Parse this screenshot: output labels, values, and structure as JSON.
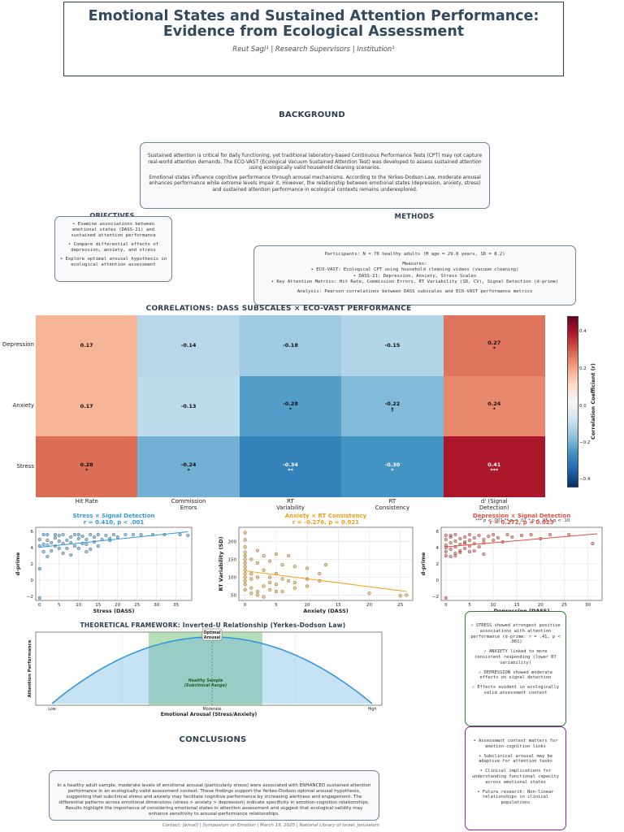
{
  "header": {
    "title_line1": "Emotional States and Sustained Attention Performance:",
    "title_line2": "Evidence from Ecological Assessment",
    "authors": "Reut Sagi¹ | Research Supervisors | Institution¹"
  },
  "background": {
    "heading": "BACKGROUND",
    "p1": "Sustained attention is critical for daily functioning, yet traditional laboratory-based Continuous Performance Tests (CPT) may not capture real-world attention demands. The ECO-VAST (Ecological Vacuum Sustained Attention Test) was developed to assess sustained attention using ecologically valid household cleaning scenarios.",
    "p2": "Emotional states influence cognitive performance through arousal mechanisms. According to the Yerkes-Dodson Law, moderate arousal enhances performance while extreme levels impair it. However, the relationship between emotional states (depression, anxiety, stress) and sustained attention performance in ecological contexts remains underexplored."
  },
  "objectives": {
    "heading": "OBJECTIVES",
    "items": [
      "• Examine associations between emotional states (DASS-21) and sustained attention performance",
      "• Compare differential effects of depression, anxiety, and stress",
      "• Explore optimal arousal hypothesis in ecological attention assessment"
    ]
  },
  "methods": {
    "heading": "METHODS",
    "participants": "Participants: N = 70 healthy adults (M age = 29.8 years, SD = 8.2)",
    "measures_h": "Measures:",
    "m1": "• ECO-VAST: Ecological CPT using household cleaning videos (vacuum cleaning)",
    "m2": "• DASS-21: Depression, Anxiety, Stress Scales",
    "m3": "• Key Attention Metrics: Hit Rate, Commission Errors, RT Variability (SD, CV), Signal Detection (d-prime)",
    "analysis": "Analysis: Pearson correlations between DASS subscales and ECO-VAST performance metrics"
  },
  "heatmap": {
    "title": "CORRELATIONS: DASS SUBSCALES × ECO-VAST PERFORMANCE",
    "rows": [
      "Depression",
      "Anxiety",
      "Stress"
    ],
    "cols": [
      "Hit Rate",
      "Commission\nErrors",
      "RT\nVariability",
      "RT\nConsistency",
      "d' (Signal\nDetection)"
    ],
    "cells": [
      [
        {
          "v": "0.17",
          "s": ""
        },
        {
          "v": "-0.14",
          "s": ""
        },
        {
          "v": "-0.18",
          "s": ""
        },
        {
          "v": "-0.15",
          "s": ""
        },
        {
          "v": "0.27",
          "s": "*"
        }
      ],
      [
        {
          "v": "0.17",
          "s": ""
        },
        {
          "v": "-0.13",
          "s": ""
        },
        {
          "v": "-0.28",
          "s": "*"
        },
        {
          "v": "-0.22",
          "s": "†"
        },
        {
          "v": "0.24",
          "s": "*"
        }
      ],
      [
        {
          "v": "0.28",
          "s": "*"
        },
        {
          "v": "-0.24",
          "s": "*"
        },
        {
          "v": "-0.34",
          "s": "**"
        },
        {
          "v": "-0.30",
          "s": "*"
        },
        {
          "v": "0.41",
          "s": "***"
        }
      ]
    ],
    "colorbar_label": "Correlation Coefficient (r)",
    "colorbar_ticks": [
      "0.4",
      "0.2",
      "0.0",
      "−0.2",
      "−0.4"
    ],
    "legend_note": "*** p < .001  ** p < .01  * p < .05  † p < .10"
  },
  "scatter1": {
    "title": "Stress × Signal Detection",
    "stat": "r = 0.410, p < .001",
    "xlabel": "Stress (DASS)",
    "ylabel": "d-prime",
    "color": "#3498db",
    "xticks": [
      "0",
      "5",
      "10",
      "15",
      "20",
      "25",
      "30",
      "35"
    ],
    "yticks": [
      "6",
      "4",
      "2",
      "0",
      "−2"
    ]
  },
  "scatter2": {
    "title": "Anxiety × RT Consistency",
    "stat": "r = -0.276, p = 0.021",
    "xlabel": "Anxiety (DASS)",
    "ylabel": "RT Variability (SD)",
    "color": "#f39c12",
    "xticks": [
      "0",
      "5",
      "10",
      "15",
      "20",
      "25"
    ],
    "yticks": [
      "200",
      "150",
      "100",
      "50"
    ]
  },
  "scatter3": {
    "title": "Depression × Signal Detection",
    "stat": "r = 0.272, p = 0.023",
    "xlabel": "Depression (DASS)",
    "ylabel": "d-prime",
    "color": "#e74c3c",
    "xticks": [
      "0",
      "5",
      "10",
      "15",
      "20",
      "25",
      "30"
    ],
    "yticks": [
      "6",
      "4",
      "2",
      "0",
      "−2"
    ]
  },
  "framework": {
    "title": "THEORETICAL FRAMEWORK: Inverted-U Relationship (Yerkes-Dodson Law)",
    "ylabel": "Attention Performance",
    "xlabel": "Emotional Arousal (Stress/Anxiety)",
    "low": "Low",
    "moderate": "Moderate",
    "high": "High",
    "optimal": "Optimal\nArousal",
    "healthy": "Healthy Sample\n(Subclinical Range)"
  },
  "findings": {
    "items": [
      "✓ STRESS showed strongest positive associations with attention performance (d-prime: r = .41, p < .001)",
      "✓ ANXIETY linked to more consistent responding (lower RT variability)",
      "✓ DEPRESSION showed moderate effects on signal detection",
      "✓ Effects evident in ecologically valid assessment context"
    ]
  },
  "implications": {
    "items": [
      "• Assessment context matters for emotion-cognition links",
      "• Subclinical arousal may be adaptive for attention tasks",
      "• Clinical implications for understanding functional capacity across emotional states",
      "• Future research: Non-linear relationships in clinical populations"
    ]
  },
  "conclusions": {
    "heading": "CONCLUSIONS",
    "text": "In a healthy adult sample, moderate levels of emotional arousal (particularly stress) were associated with ENHANCED sustained attention performance in an ecologically valid assessment context. These findings support the Yerkes-Dodson optimal arousal hypothesis, suggesting that subclinical stress and anxiety may facilitate cognitive performance by increasing alertness and engagement. The differential patterns across emotional dimensions (stress > anxiety > depression) indicate specificity in emotion-cognition relationships. Results highlight the importance of considering emotional states in attention assessment and suggest that ecological validity may enhance sensitivity to arousal-performance relationships."
  },
  "footer": "Contact: [email] | Symposium on Emotion | March 19, 2025 | National Library of Israel, Jerusalem",
  "chart_data": [
    {
      "type": "heatmap",
      "title": "CORRELATIONS: DASS SUBSCALES × ECO-VAST PERFORMANCE",
      "rows": [
        "Depression",
        "Anxiety",
        "Stress"
      ],
      "columns": [
        "Hit Rate",
        "Commission Errors",
        "RT Variability",
        "RT Consistency",
        "d' (Signal Detection)"
      ],
      "values": [
        [
          0.17,
          -0.14,
          -0.18,
          -0.15,
          0.27
        ],
        [
          0.17,
          -0.13,
          -0.28,
          -0.22,
          0.24
        ],
        [
          0.28,
          -0.24,
          -0.34,
          -0.3,
          0.41
        ]
      ],
      "colorbar": {
        "label": "Correlation Coefficient (r)",
        "range": [
          -0.5,
          0.5
        ]
      }
    },
    {
      "type": "scatter",
      "title": "Stress × Signal Detection",
      "xlabel": "Stress (DASS)",
      "ylabel": "d-prime",
      "xlim": [
        -1,
        39
      ],
      "ylim": [
        -2.5,
        6.5
      ],
      "x": [
        0,
        0,
        0,
        1,
        1,
        1,
        2,
        2,
        2,
        3,
        3,
        4,
        4,
        4,
        5,
        5,
        5,
        6,
        6,
        7,
        7,
        8,
        8,
        9,
        9,
        10,
        10,
        10,
        11,
        11,
        12,
        12,
        13,
        13,
        14,
        14,
        15,
        15,
        16,
        17,
        18,
        19,
        20,
        22,
        24,
        26,
        29,
        32,
        36,
        38,
        0,
        2,
        6,
        8,
        12,
        18
      ],
      "y": [
        -2.2,
        4.2,
        5.0,
        5.6,
        4.4,
        3.5,
        4.9,
        5.6,
        4.3,
        4.6,
        3.6,
        5.2,
        4.2,
        5.6,
        4.8,
        3.9,
        5.5,
        4.5,
        5.6,
        4.9,
        3.9,
        5.3,
        4.6,
        5.6,
        4.2,
        5.1,
        3.9,
        5.6,
        4.5,
        5.4,
        4.4,
        5.0,
        3.8,
        5.6,
        4.7,
        5.3,
        4.2,
        5.6,
        5.0,
        5.5,
        4.9,
        5.6,
        5.3,
        5.6,
        5.6,
        5.6,
        5.6,
        5.6,
        5.6,
        5.5,
        1.4,
        2.9,
        3.3,
        3.1,
        3.5,
        5.1
      ],
      "trend": {
        "x": [
          0,
          38
        ],
        "y": [
          4.05,
          5.95
        ]
      }
    },
    {
      "type": "scatter",
      "title": "Anxiety × RT Consistency",
      "xlabel": "Anxiety (DASS)",
      "ylabel": "RT Variability (SD)",
      "xlim": [
        -1,
        27
      ],
      "ylim": [
        35,
        240
      ],
      "x": [
        0,
        0,
        0,
        0,
        0,
        0,
        0,
        0,
        0,
        0,
        0,
        0,
        0,
        1,
        1,
        1,
        1,
        2,
        2,
        2,
        2,
        3,
        3,
        3,
        4,
        4,
        4,
        5,
        5,
        5,
        6,
        6,
        6,
        7,
        7,
        8,
        8,
        8,
        10,
        10,
        10,
        12,
        12,
        13,
        20,
        25,
        26,
        0,
        1,
        2,
        3,
        4,
        5
      ],
      "y": [
        225,
        205,
        185,
        170,
        160,
        150,
        140,
        130,
        120,
        110,
        100,
        90,
        80,
        150,
        110,
        95,
        70,
        175,
        140,
        100,
        60,
        160,
        120,
        75,
        145,
        100,
        65,
        165,
        110,
        80,
        135,
        95,
        60,
        160,
        90,
        130,
        85,
        70,
        125,
        95,
        75,
        110,
        90,
        135,
        55,
        48,
        50,
        65,
        55,
        50,
        45,
        85,
        60
      ],
      "trend": {
        "x": [
          0,
          26
        ],
        "y": [
          118,
          60
        ]
      }
    },
    {
      "type": "scatter",
      "title": "Depression × Signal Detection",
      "xlabel": "Depression (DASS)",
      "ylabel": "d-prime",
      "xlim": [
        -1,
        33
      ],
      "ylim": [
        -2.5,
        6.5
      ],
      "x": [
        0,
        0,
        0,
        0,
        0,
        0,
        1,
        1,
        1,
        2,
        2,
        2,
        3,
        3,
        3,
        4,
        4,
        4,
        5,
        5,
        5,
        6,
        6,
        7,
        7,
        8,
        8,
        9,
        10,
        10,
        11,
        12,
        13,
        14,
        16,
        18,
        20,
        22,
        26,
        31,
        0,
        1,
        2,
        3,
        5,
        8,
        2,
        4,
        6,
        1
      ],
      "y": [
        -2.2,
        3.5,
        4.3,
        5.0,
        5.5,
        4.0,
        4.6,
        5.3,
        3.8,
        4.8,
        5.6,
        4.1,
        4.4,
        5.1,
        3.6,
        5.3,
        4.5,
        3.9,
        4.9,
        5.6,
        4.2,
        5.2,
        4.5,
        5.5,
        4.1,
        5.0,
        4.6,
        5.4,
        4.9,
        5.6,
        5.2,
        4.7,
        5.6,
        5.3,
        5.5,
        5.6,
        5.1,
        5.6,
        5.6,
        4.5,
        3.0,
        2.9,
        3.3,
        3.4,
        3.5,
        3.2,
        3.0,
        4.7,
        3.6,
        5.5
      ],
      "trend": {
        "x": [
          0,
          32
        ],
        "y": [
          4.1,
          5.7
        ]
      }
    },
    {
      "type": "line",
      "title": "THEORETICAL FRAMEWORK: Inverted-U Relationship (Yerkes-Dodson Law)",
      "xlabel": "Emotional Arousal (Stress/Anxiety)",
      "ylabel": "Attention Performance",
      "x_categories": [
        "Low",
        "Moderate",
        "High"
      ],
      "shape": "inverted-u",
      "highlight": "Healthy Sample (Subclinical Range)",
      "peak": "Optimal Arousal"
    }
  ]
}
